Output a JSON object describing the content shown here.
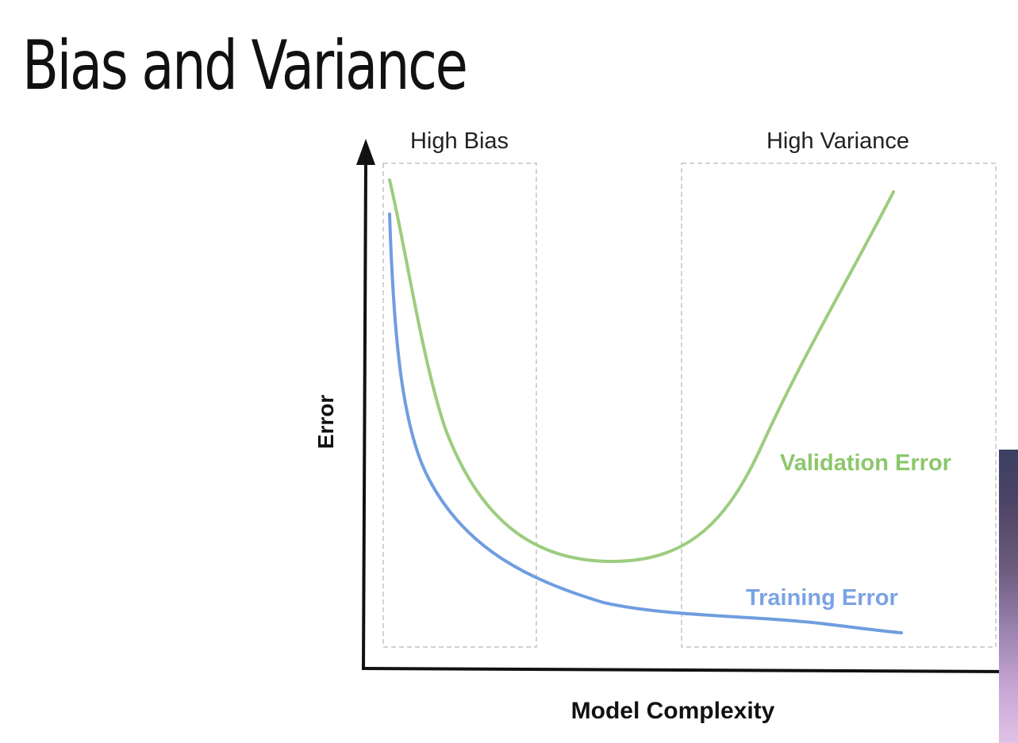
{
  "slide": {
    "title": "Bias and Variance"
  },
  "diagram": {
    "zone_left_label": "High Bias",
    "zone_right_label": "High Variance",
    "y_axis_label": "Error",
    "x_axis_label": "Model Complexity",
    "validation_label": "Validation Error",
    "training_label": "Training Error"
  },
  "colors": {
    "validation_curve": "#9ccd7f",
    "validation_text": "#8cc76c",
    "training_curve": "#6f9ddf",
    "training_text": "#7aa3e3",
    "axis": "#111111",
    "zone_border": "#c4c4c4"
  }
}
